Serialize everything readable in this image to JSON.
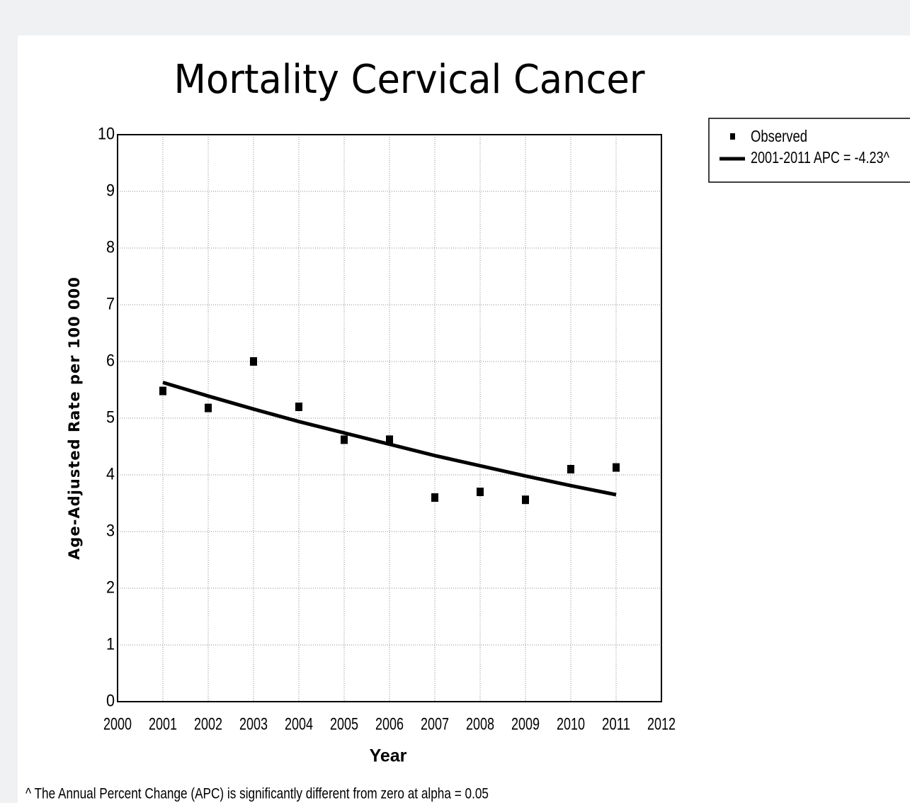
{
  "chart_data": {
    "type": "scatter",
    "title": "Mortality  Cervical Cancer",
    "x_label": "Year",
    "y_label": "Age-Adjusted Rate per 100 000",
    "footnote": "^ The Annual Percent Change (APC) is significantly different from zero at alpha = 0.05",
    "x": [
      2001,
      2002,
      2003,
      2004,
      2005,
      2006,
      2007,
      2008,
      2009,
      2010,
      2011
    ],
    "series": [
      {
        "name": "Observed",
        "type": "scatter",
        "color": "#000000",
        "values": [
          5.48,
          5.18,
          6.0,
          5.2,
          4.62,
          4.62,
          3.6,
          3.7,
          3.56,
          4.1,
          4.13
        ]
      },
      {
        "name": "2001-2011 APC  = -4.23^",
        "type": "line",
        "color": "#000000",
        "values": [
          5.63,
          5.39,
          5.16,
          4.94,
          4.74,
          4.54,
          4.34,
          4.16,
          3.98,
          3.81,
          3.65
        ]
      }
    ],
    "xlim": [
      2000,
      2012
    ],
    "xticks": [
      2000,
      2001,
      2002,
      2003,
      2004,
      2005,
      2006,
      2007,
      2008,
      2009,
      2010,
      2011,
      2012
    ],
    "ylim": [
      0,
      10
    ],
    "yticks": [
      0,
      1,
      2,
      3,
      4,
      5,
      6,
      7,
      8,
      9,
      10
    ],
    "grid": true,
    "legend": "outside-right"
  }
}
